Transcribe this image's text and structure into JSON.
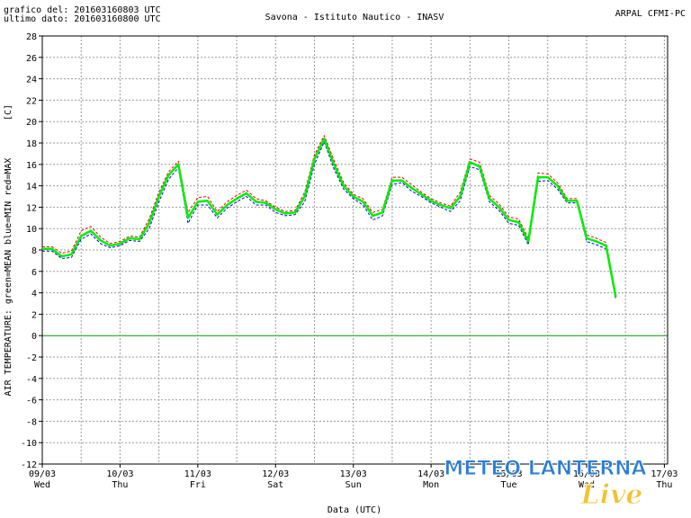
{
  "chart_data": {
    "type": "line",
    "title": "Savona - Istituto Nautico - INASV",
    "header_left": [
      "grafico del: 201603160803 UTC",
      "ultimo dato: 201603160800 UTC"
    ],
    "header_right": "ARPAL CFMI-PC",
    "y_unit": "[C]",
    "y_label": "AIR TEMPERATURE: green=MEAN  blue=MIN  red=MAX",
    "x_label": "Data (UTC)",
    "watermark": [
      "METEO LANTERNA",
      "Live"
    ],
    "xlim": [
      0,
      193
    ],
    "ylim": [
      -12,
      28
    ],
    "yticks": [
      -12,
      -10,
      -8,
      -6,
      -4,
      -2,
      0,
      2,
      4,
      6,
      8,
      10,
      12,
      14,
      16,
      18,
      20,
      22,
      24,
      26,
      28
    ],
    "xticks": [
      {
        "value": 0,
        "label": "09/03"
      },
      {
        "value": 24,
        "label": "10/03"
      },
      {
        "value": 48,
        "label": "11/03"
      },
      {
        "value": 72,
        "label": "12/03"
      },
      {
        "value": 96,
        "label": "13/03"
      },
      {
        "value": 120,
        "label": "14/03"
      },
      {
        "value": 144,
        "label": "15/03"
      },
      {
        "value": 168,
        "label": "16/03"
      },
      {
        "value": 192,
        "label": "17/03"
      }
    ],
    "xtick_weekdays": [
      "Wed",
      "Thu",
      "Fri",
      "Sat",
      "Sun",
      "Mon",
      "Tue",
      "Wed",
      "Thu"
    ],
    "xminorticks": [
      12,
      36,
      60,
      84,
      108,
      132,
      156,
      180
    ],
    "grid": true,
    "zero_line_color": "#009900",
    "x": [
      0,
      3,
      6,
      9,
      12,
      15,
      18,
      21,
      24,
      27,
      30,
      33,
      36,
      39,
      42,
      45,
      48,
      51,
      54,
      57,
      60,
      63,
      66,
      69,
      72,
      75,
      78,
      81,
      84,
      87,
      90,
      93,
      96,
      99,
      102,
      105,
      108,
      111,
      114,
      117,
      120,
      123,
      126,
      129,
      132,
      135,
      138,
      141,
      144,
      147,
      150,
      153,
      156,
      159,
      162,
      165,
      168,
      171,
      174,
      177
    ],
    "series": [
      {
        "color": "#0000ff",
        "dashed": true,
        "width": 1,
        "values": [
          7.9,
          7.9,
          7.2,
          7.3,
          9.0,
          9.5,
          8.6,
          8.2,
          8.4,
          8.9,
          8.8,
          10.0,
          12.5,
          14.6,
          15.7,
          10.5,
          12.2,
          12.2,
          11.0,
          11.9,
          12.5,
          13.0,
          12.2,
          12.2,
          11.5,
          11.2,
          11.3,
          12.5,
          16.0,
          18.1,
          15.6,
          13.7,
          12.8,
          12.2,
          10.8,
          11.2,
          14.1,
          14.3,
          13.5,
          13.0,
          12.4,
          12.0,
          11.6,
          12.6,
          15.8,
          15.5,
          12.5,
          11.7,
          10.5,
          10.3,
          8.5,
          14.4,
          14.5,
          13.7,
          12.4,
          12.4,
          8.8,
          8.5,
          8.1,
          3.4
        ]
      },
      {
        "color": "#ff0000",
        "dashed": true,
        "width": 1,
        "values": [
          8.3,
          8.3,
          7.7,
          7.9,
          9.8,
          10.2,
          9.2,
          8.6,
          8.8,
          9.3,
          9.2,
          10.9,
          13.4,
          15.3,
          16.3,
          11.5,
          12.9,
          13.0,
          11.6,
          12.5,
          13.1,
          13.6,
          12.8,
          12.6,
          12.0,
          11.6,
          11.7,
          13.4,
          16.9,
          18.7,
          16.4,
          14.3,
          13.2,
          12.8,
          11.5,
          11.8,
          14.8,
          14.8,
          14.1,
          13.4,
          12.8,
          12.4,
          12.1,
          13.4,
          16.5,
          16.2,
          13.1,
          12.3,
          11.1,
          10.9,
          9.1,
          15.2,
          15.1,
          14.3,
          12.8,
          12.8,
          9.4,
          9.1,
          8.7,
          3.9
        ]
      },
      {
        "color": "#00ee00",
        "dashed": false,
        "width": 2.5,
        "values": [
          8.1,
          8.1,
          7.4,
          7.6,
          9.3,
          9.8,
          8.9,
          8.4,
          8.6,
          9.1,
          9.0,
          10.5,
          13.0,
          15.0,
          16.0,
          11.0,
          12.5,
          12.6,
          11.3,
          12.2,
          12.8,
          13.3,
          12.5,
          12.4,
          11.8,
          11.4,
          11.5,
          13.0,
          16.5,
          18.4,
          16.0,
          14.0,
          13.0,
          12.5,
          11.2,
          11.5,
          14.5,
          14.5,
          13.8,
          13.2,
          12.6,
          12.2,
          11.9,
          13.0,
          16.2,
          15.8,
          12.8,
          12.0,
          10.8,
          10.6,
          8.8,
          14.8,
          14.8,
          14.0,
          12.6,
          12.6,
          9.1,
          8.8,
          8.4,
          3.6
        ]
      }
    ]
  }
}
